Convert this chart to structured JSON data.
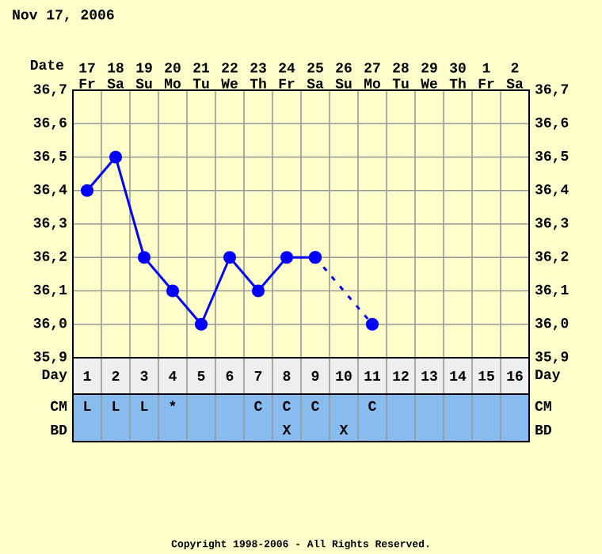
{
  "chart_data": [
    {
      "type": "line",
      "title": "Nov 17, 2006",
      "xlabel": "Date",
      "categories": [
        "17 Fr",
        "18 Sa",
        "19 Su",
        "20 Mo",
        "21 Tu",
        "22 We",
        "23 Th",
        "24 Fr",
        "25 Sa",
        "26 Su",
        "27 Mo",
        "28 Tu",
        "29 We",
        "30 Th",
        "1 Fr",
        "2 Sa"
      ],
      "ylim": [
        35.9,
        36.7
      ],
      "yticks": [
        {
          "value": 35.9,
          "label": "35,9"
        },
        {
          "value": 36.0,
          "label": "36,0"
        },
        {
          "value": 36.1,
          "label": "36,1"
        },
        {
          "value": 36.2,
          "label": "36,2"
        },
        {
          "value": 36.3,
          "label": "36,3"
        },
        {
          "value": 36.4,
          "label": "36,4"
        },
        {
          "value": 36.5,
          "label": "36,5"
        },
        {
          "value": 36.6,
          "label": "36,6"
        },
        {
          "value": 36.7,
          "label": "36,7"
        }
      ],
      "y2lim": [
        35.9,
        36.7
      ],
      "y2ticks": [
        {
          "value": 35.9,
          "label": "35,9"
        },
        {
          "value": 36.0,
          "label": "36,0"
        },
        {
          "value": 36.1,
          "label": "36,1"
        },
        {
          "value": 36.2,
          "label": "36,2"
        },
        {
          "value": 36.3,
          "label": "36,3"
        },
        {
          "value": 36.4,
          "label": "36,4"
        },
        {
          "value": 36.5,
          "label": "36,5"
        },
        {
          "value": 36.6,
          "label": "36,6"
        },
        {
          "value": 36.7,
          "label": "36,7"
        }
      ],
      "grid": true,
      "marker": "circle",
      "series": [
        {
          "color": "#0000ff",
          "line_style": "solid",
          "values": [
            36.4,
            36.5,
            36.2,
            36.1,
            36.0,
            36.2,
            36.1,
            36.2,
            36.2,
            null,
            null,
            null,
            null,
            null,
            null,
            null
          ]
        },
        {
          "color": "#0000ff",
          "line_style": "dashed",
          "values": [
            null,
            null,
            null,
            null,
            null,
            null,
            null,
            null,
            36.2,
            null,
            36.0,
            null,
            null,
            null,
            null,
            null
          ]
        }
      ]
    },
    {
      "type": "heatmap",
      "xlabel": "Day",
      "categories": [
        "1",
        "2",
        "3",
        "4",
        "5",
        "6",
        "7",
        "8",
        "9",
        "10",
        "11",
        "12",
        "13",
        "14",
        "15",
        "16"
      ],
      "y_categories": [
        "CM",
        "BD"
      ],
      "y2_categories": [
        "CM",
        "BD"
      ],
      "cells": [
        [
          null,
          null,
          null,
          null,
          null,
          null,
          null,
          null,
          null,
          null,
          null,
          null,
          null,
          null,
          null,
          null
        ],
        [
          null,
          null,
          null,
          null,
          null,
          null,
          null,
          null,
          null,
          null,
          null,
          null,
          null,
          null,
          null,
          null
        ]
      ],
      "cell_labels": [
        [
          "L",
          "L",
          "L",
          "*",
          null,
          null,
          "C",
          "C",
          "C",
          null,
          "C",
          null,
          null,
          null,
          null,
          null
        ],
        [
          null,
          null,
          null,
          null,
          null,
          null,
          null,
          "X",
          null,
          "X",
          null,
          null,
          null,
          null,
          null,
          null
        ]
      ],
      "annotations": [
        "Copyright 1998-2006 - All Rights Reserved."
      ]
    }
  ]
}
